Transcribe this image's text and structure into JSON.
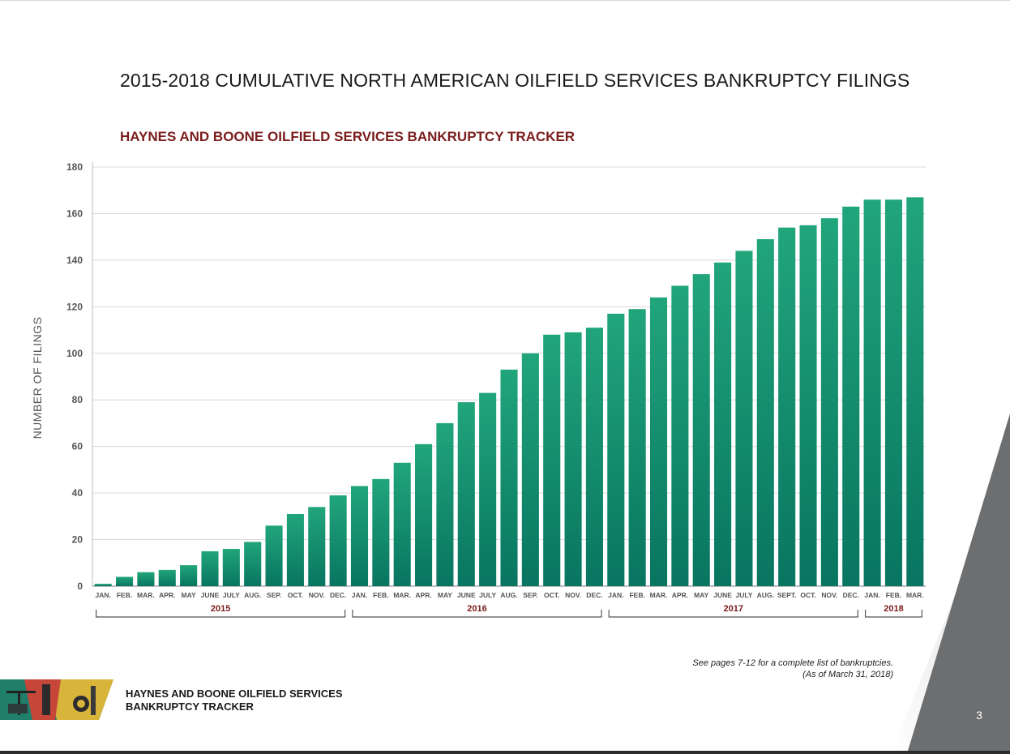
{
  "page": {
    "title": "2015-2018 CUMULATIVE NORTH AMERICAN OILFIELD SERVICES BANKRUPTCY FILINGS",
    "page_number": "3"
  },
  "footnote": {
    "line1": "See pages 7-12 for a complete list of bankruptcies.",
    "line2": "(As of March 31, 2018)"
  },
  "footer": {
    "brand_line1": "HAYNES AND BOONE OILFIELD SERVICES",
    "brand_line2": "BANKRUPTCY TRACKER"
  },
  "colors": {
    "bar_top": "#21a57b",
    "bar_bottom": "#087560",
    "subtitle": "#7a1c1c",
    "gray_panel": "#6d6e70"
  },
  "chart_data": {
    "type": "bar",
    "title": "HAYNES AND BOONE OILFIELD SERVICES BANKRUPTCY TRACKER",
    "ylabel": "NUMBER OF FILINGS",
    "xlabel": "",
    "ylim": [
      0,
      180
    ],
    "yticks": [
      0,
      20,
      40,
      60,
      80,
      100,
      120,
      140,
      160,
      180
    ],
    "grid": true,
    "categories": [
      "JAN.",
      "FEB.",
      "MAR.",
      "APR.",
      "MAY",
      "JUNE",
      "JULY",
      "AUG.",
      "SEP.",
      "OCT.",
      "NOV.",
      "DEC.",
      "JAN.",
      "FEB.",
      "MAR.",
      "APR.",
      "MAY",
      "JUNE",
      "JULY",
      "AUG.",
      "SEP.",
      "OCT.",
      "NOV.",
      "DEC.",
      "JAN.",
      "FEB.",
      "MAR.",
      "APR.",
      "MAY",
      "JUNE",
      "JULY",
      "AUG.",
      "SEPT.",
      "OCT.",
      "NOV.",
      "DEC.",
      "JAN.",
      "FEB.",
      "MAR."
    ],
    "values": [
      1,
      4,
      6,
      7,
      9,
      15,
      16,
      19,
      26,
      31,
      34,
      39,
      43,
      46,
      53,
      61,
      70,
      79,
      83,
      93,
      100,
      108,
      109,
      111,
      117,
      119,
      124,
      129,
      134,
      139,
      144,
      149,
      154,
      155,
      158,
      163,
      166,
      166,
      167
    ],
    "groups": [
      {
        "label": "2015",
        "start": 0,
        "end": 11
      },
      {
        "label": "2016",
        "start": 12,
        "end": 23
      },
      {
        "label": "2017",
        "start": 24,
        "end": 35
      },
      {
        "label": "2018",
        "start": 36,
        "end": 38
      }
    ]
  }
}
